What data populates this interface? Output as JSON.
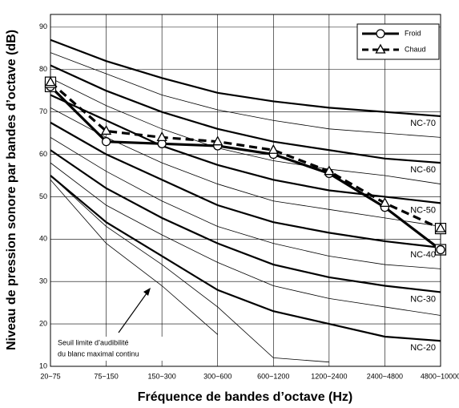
{
  "chart_data": {
    "type": "line",
    "x_label": "Fréquence de bandes d’octave (Hz)",
    "y_label": "Niveau de pression sonore par bandes d’octave (dB)",
    "categories": [
      "20~75",
      "75~150",
      "150~300",
      "300~600",
      "600~1200",
      "1200~2400",
      "2400~4800",
      "4800~10000"
    ],
    "ylim": [
      10,
      93
    ],
    "yticks": [
      10,
      20,
      30,
      40,
      50,
      60,
      70,
      80,
      90
    ],
    "grid": true,
    "legend": "upper right",
    "series": [
      {
        "name": "Froid",
        "color": "#000000",
        "marker": "circle",
        "dashed": false,
        "values": [
          76,
          63,
          62.5,
          62,
          60,
          55.5,
          47.5,
          37.5
        ]
      },
      {
        "name": "Chaud",
        "color": "#000000",
        "marker": "triangle",
        "dashed": true,
        "values": [
          77,
          65.5,
          64,
          63,
          61,
          56,
          48.5,
          42.5
        ]
      }
    ],
    "reference_curves": [
      {
        "label": "NC-70",
        "thick": true,
        "values": [
          87,
          82,
          78,
          74.5,
          72.5,
          71,
          70,
          69
        ]
      },
      {
        "thick": false,
        "values": [
          84,
          79,
          74,
          70.5,
          68,
          66,
          65,
          64
        ]
      },
      {
        "label": "NC-60",
        "thick": true,
        "values": [
          81,
          75,
          70,
          66,
          63,
          61,
          59,
          58
        ]
      },
      {
        "thick": false,
        "values": [
          78,
          71.5,
          66,
          61.5,
          58.5,
          56.5,
          55,
          53
        ]
      },
      {
        "label": "NC-50",
        "thick": true,
        "values": [
          74,
          68,
          62,
          57.5,
          54,
          51.5,
          50,
          48.5
        ]
      },
      {
        "thick": false,
        "values": [
          71,
          64,
          58,
          53,
          49,
          47,
          45,
          43
        ]
      },
      {
        "label": "NC-40",
        "thick": true,
        "values": [
          67.5,
          60,
          54,
          48,
          44,
          41.5,
          39.5,
          38
        ]
      },
      {
        "thick": false,
        "values": [
          64,
          56,
          49,
          43,
          39,
          36,
          34,
          33
        ]
      },
      {
        "label": "NC-30",
        "thick": true,
        "values": [
          61,
          52,
          45,
          39,
          34,
          31,
          29,
          27.5
        ]
      },
      {
        "thick": false,
        "values": [
          58,
          48,
          41,
          34.5,
          29,
          26,
          24,
          22
        ]
      },
      {
        "label": "NC-20",
        "thick": true,
        "values": [
          55,
          44,
          36,
          28,
          23,
          20,
          17,
          16
        ]
      },
      {
        "thick": false,
        "values": [
          55,
          43,
          34,
          24,
          12,
          11,
          null,
          null
        ]
      },
      {
        "thick": false,
        "values": [
          54,
          39,
          29,
          17.5,
          null,
          null,
          null,
          null
        ]
      }
    ],
    "annotations": [
      "Seuil limite d’audibilité",
      "du blanc maximal continu"
    ]
  }
}
